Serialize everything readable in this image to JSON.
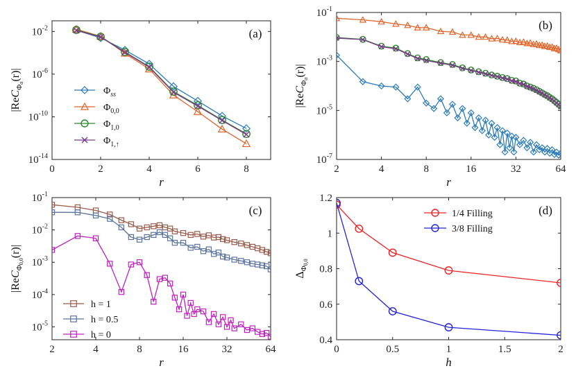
{
  "chart_data": [
    {
      "panel": "(a)",
      "type": "line",
      "xscale": "linear",
      "yscale": "log",
      "xlim": [
        0,
        9
      ],
      "ylim": [
        1e-14,
        0.1
      ],
      "xticks": [
        "0",
        "2",
        "4",
        "6",
        "8"
      ],
      "yticks": [
        {
          "base": "10",
          "exp": "-2"
        },
        {
          "base": "10",
          "exp": "-6"
        },
        {
          "base": "10",
          "exp": "-10"
        },
        {
          "base": "10",
          "exp": "-14"
        }
      ],
      "xlabel": "r",
      "ylabel_parts": {
        "pre": "|Re",
        "c": "C",
        "sub": "Φ",
        "subsub": "α",
        "post": "(r)|"
      },
      "legend_position": "left-center",
      "series": [
        {
          "name": "Φ",
          "name_sub": "ss",
          "color": "#2b7bba",
          "marker": "diamond",
          "x": [
            1,
            2,
            3,
            4,
            5,
            6,
            7,
            8
          ],
          "y": [
            0.013,
            0.0025,
            0.00018,
            9e-06,
            7e-08,
            3e-09,
            1.2e-10,
            8e-12
          ]
        },
        {
          "name": "Φ",
          "name_sub": "0,0",
          "color": "#e0642a",
          "marker": "triangle",
          "x": [
            1,
            2,
            3,
            4,
            5,
            6,
            7,
            8
          ],
          "y": [
            0.016,
            0.0035,
            9e-05,
            3e-06,
            1.1e-08,
            3e-10,
            7e-12,
            3e-13
          ]
        },
        {
          "name": "Φ",
          "name_sub": "1,0",
          "color": "#2a8a2a",
          "marker": "circle",
          "x": [
            1,
            2,
            3,
            4,
            5,
            6,
            7,
            8
          ],
          "y": [
            0.014,
            0.0032,
            0.00012,
            5e-06,
            2.3e-08,
            1.2e-09,
            5e-11,
            2.5e-12
          ]
        },
        {
          "name": "Φ",
          "name_sub": "1,↑",
          "color": "#7a3a8a",
          "marker": "x",
          "x": [
            1,
            2,
            3,
            4,
            5,
            6,
            7,
            8
          ],
          "y": [
            0.0125,
            0.003,
            0.00011,
            4.5e-06,
            2e-08,
            1e-09,
            4.5e-11,
            2.2e-12
          ]
        }
      ]
    },
    {
      "panel": "(b)",
      "type": "line",
      "xscale": "log2",
      "yscale": "log",
      "xlim": [
        2,
        64
      ],
      "ylim": [
        1e-07,
        0.1
      ],
      "xticks": [
        "2",
        "4",
        "8",
        "16",
        "32",
        "64"
      ],
      "yticks": [
        {
          "base": "10",
          "exp": "-1"
        },
        {
          "base": "10",
          "exp": "-3"
        },
        {
          "base": "10",
          "exp": "-5"
        },
        {
          "base": "10",
          "exp": "-7"
        }
      ],
      "xlabel": "r",
      "ylabel_parts": {
        "pre": "|Re",
        "c": "C",
        "sub": "Φ",
        "subsub": "α",
        "post": "(r)|"
      },
      "series": [
        {
          "name": "Φ0,0",
          "color": "#e0642a",
          "marker": "triangle",
          "x": [
            2,
            3,
            4,
            5,
            6,
            7,
            8,
            10,
            12,
            14,
            16,
            18,
            20,
            22,
            24,
            26,
            28,
            30,
            32,
            34,
            36,
            38,
            40,
            42,
            44,
            46,
            48,
            50,
            52,
            54,
            56,
            58,
            60,
            62,
            64
          ],
          "y": [
            0.058,
            0.05,
            0.042,
            0.034,
            0.03,
            0.024,
            0.024,
            0.017,
            0.016,
            0.012,
            0.012,
            0.01,
            0.01,
            0.0085,
            0.0087,
            0.0077,
            0.0075,
            0.0066,
            0.0068,
            0.006,
            0.0062,
            0.0055,
            0.0057,
            0.005,
            0.0052,
            0.0046,
            0.0047,
            0.0042,
            0.0043,
            0.0038,
            0.0039,
            0.0034,
            0.0035,
            0.0031,
            0.0028
          ]
        },
        {
          "name": "Φ1,0",
          "color": "#2a8a2a",
          "marker": "circle",
          "x": [
            2,
            3,
            4,
            5,
            6,
            7,
            8,
            10,
            12,
            14,
            16,
            18,
            20,
            22,
            24,
            26,
            28,
            30,
            32,
            34,
            36,
            38,
            40,
            42,
            44,
            46,
            48,
            50,
            52,
            54,
            56,
            58,
            60,
            62,
            64
          ],
          "y": [
            0.0095,
            0.008,
            0.0042,
            0.0035,
            0.0021,
            0.0014,
            0.0012,
            0.0009,
            0.00075,
            0.00055,
            0.00045,
            0.00038,
            0.00033,
            0.00028,
            0.00025,
            0.00022,
            0.0002,
            0.00017,
            0.00016,
            0.00013,
            0.00012,
            0.0001,
            9e-05,
            8e-05,
            7e-05,
            6e-05,
            5.2e-05,
            4.5e-05,
            4e-05,
            3.4e-05,
            3e-05,
            2.5e-05,
            2.1e-05,
            1.8e-05,
            1.5e-05
          ]
        },
        {
          "name": "Φ1,↑",
          "color": "#7a3a8a",
          "marker": "x",
          "x": [
            2,
            3,
            4,
            5,
            6,
            7,
            8,
            10,
            12,
            14,
            16,
            18,
            20,
            22,
            24,
            26,
            28,
            30,
            32,
            34,
            36,
            38,
            40,
            42,
            44,
            46,
            48,
            50,
            52,
            54,
            56,
            58,
            60,
            62,
            64
          ],
          "y": [
            0.009,
            0.0078,
            0.004,
            0.0033,
            0.002,
            0.0013,
            0.0011,
            0.00085,
            0.0007,
            0.00052,
            0.00043,
            0.00036,
            0.00031,
            0.00027,
            0.00024,
            0.00021,
            0.00019,
            0.00016,
            0.00015,
            0.000125,
            0.000115,
            9.5e-05,
            8.6e-05,
            7.6e-05,
            6.6e-05,
            5.7e-05,
            5e-05,
            4.3e-05,
            3.8e-05,
            3.2e-05,
            2.8e-05,
            2.4e-05,
            2e-05,
            1.7e-05,
            1.4e-05
          ]
        },
        {
          "name": "Φss",
          "color": "#2b7bba",
          "marker": "diamond",
          "x": [
            2,
            3,
            4,
            5,
            6,
            7,
            8,
            9,
            10,
            11,
            12,
            13,
            14,
            15,
            16,
            17,
            18,
            19,
            20,
            21,
            22,
            23,
            24,
            25,
            26,
            27,
            28,
            29,
            30,
            31,
            32,
            34,
            36,
            38,
            40,
            42,
            44,
            46,
            48,
            50,
            52,
            54,
            56,
            58,
            60,
            62,
            64
          ],
          "y": [
            0.0018,
            0.00015,
            0.0001,
            9e-05,
            3e-05,
            9e-05,
            2e-05,
            1.2e-05,
            3e-05,
            8e-06,
            1.8e-05,
            5e-06,
            1.2e-05,
            3e-06,
            8e-06,
            2e-06,
            5e-06,
            1.5e-06,
            4e-06,
            1e-06,
            3e-06,
            8e-07,
            2e-06,
            4e-07,
            1.5e-06,
            2e-07,
            1.2e-06,
            3e-07,
            9e-07,
            2e-07,
            8e-07,
            4e-07,
            6e-07,
            3e-07,
            5e-07,
            2e-07,
            4e-07,
            2.5e-07,
            3e-07,
            2e-07,
            2.8e-07,
            1.8e-07,
            2.5e-07,
            1.6e-07,
            2e-07,
            1.5e-07,
            1.8e-07
          ]
        }
      ]
    },
    {
      "panel": "(c)",
      "type": "line",
      "xscale": "log2",
      "yscale": "log",
      "xlim": [
        2,
        64
      ],
      "ylim": [
        4e-06,
        0.1
      ],
      "xticks": [
        "2",
        "4",
        "8",
        "16",
        "32",
        "64"
      ],
      "yticks": [
        {
          "base": "10",
          "exp": "-1"
        },
        {
          "base": "10",
          "exp": "-2"
        },
        {
          "base": "10",
          "exp": "-3"
        },
        {
          "base": "10",
          "exp": "-4"
        },
        {
          "base": "10",
          "exp": "-5"
        }
      ],
      "xlabel": "r",
      "ylabel_parts": {
        "pre": "|Re",
        "c": "C",
        "sub": "Φ",
        "subsub": "0,0",
        "post": "(r)|"
      },
      "legend_position": "bottom-left",
      "series": [
        {
          "name": "h = 1",
          "color": "#9a5a4a",
          "marker": "square",
          "x": [
            2,
            3,
            4,
            5,
            6,
            7,
            8,
            9,
            10,
            11,
            12,
            13,
            14,
            16,
            18,
            20,
            22,
            24,
            26,
            28,
            30,
            32,
            36,
            40,
            44,
            48,
            52,
            56,
            60,
            64
          ],
          "y": [
            0.06,
            0.05,
            0.04,
            0.03,
            0.02,
            0.015,
            0.011,
            0.012,
            0.013,
            0.014,
            0.012,
            0.011,
            0.009,
            0.008,
            0.007,
            0.0075,
            0.0062,
            0.0068,
            0.0058,
            0.006,
            0.0052,
            0.0048,
            0.0042,
            0.0038,
            0.0034,
            0.003,
            0.0027,
            0.0024,
            0.0021,
            0.0019
          ]
        },
        {
          "name": "h = 0.5",
          "color": "#5a73a0",
          "marker": "square",
          "x": [
            2,
            3,
            4,
            5,
            6,
            7,
            8,
            9,
            10,
            11,
            12,
            13,
            14,
            16,
            18,
            20,
            22,
            24,
            26,
            28,
            30,
            32,
            36,
            40,
            44,
            48,
            52,
            56,
            60,
            64
          ],
          "y": [
            0.035,
            0.035,
            0.028,
            0.022,
            0.012,
            0.006,
            0.005,
            0.006,
            0.007,
            0.0085,
            0.007,
            0.0055,
            0.004,
            0.004,
            0.0028,
            0.003,
            0.0022,
            0.0025,
            0.0018,
            0.002,
            0.0015,
            0.0014,
            0.0012,
            0.0011,
            0.001,
            0.0009,
            0.00085,
            0.0008,
            0.00075,
            0.0006
          ]
        },
        {
          "name": "h = 0",
          "color": "#c020c0",
          "marker": "square",
          "x": [
            2,
            3,
            4,
            5,
            6,
            7,
            8,
            9,
            10,
            11,
            12,
            13,
            14,
            15,
            16,
            17,
            18,
            19,
            20,
            22,
            24,
            26,
            28,
            30,
            32,
            34,
            36,
            40,
            44,
            48,
            52,
            56,
            60,
            64
          ],
          "y": [
            0.0024,
            0.0065,
            0.0055,
            0.0009,
            0.00012,
            0.00085,
            0.001,
            0.0004,
            6e-05,
            0.0003,
            0.00033,
            0.00022,
            8e-05,
            3.5e-05,
            0.0001,
            2.2e-05,
            5.5e-05,
            2.5e-05,
            3.5e-05,
            3e-05,
            1.4e-05,
            2.5e-05,
            1.2e-05,
            2e-05,
            1e-05,
            1.6e-05,
            9e-06,
            1.2e-05,
            8e-06,
            9e-06,
            7e-06,
            6e-06,
            6.5e-06,
            5e-06
          ]
        }
      ]
    },
    {
      "panel": "(d)",
      "type": "line",
      "xscale": "linear",
      "yscale": "linear",
      "xlim": [
        0,
        2
      ],
      "ylim": [
        0.4,
        1.2
      ],
      "xticks": [
        "0",
        "0.5",
        "1",
        "1.5",
        "2"
      ],
      "yticks_text": [
        "1.2",
        "1",
        "0.8",
        "0.6",
        "0.4"
      ],
      "xlabel": "h",
      "ylabel_parts": {
        "pre": "Δ",
        "sub": "Φ",
        "subsub": "0,0"
      },
      "legend_position": "top-right",
      "series": [
        {
          "name": "1/4 Filling",
          "color": "#ee2222",
          "marker": "circle",
          "x": [
            0,
            0.2,
            0.5,
            1,
            2
          ],
          "y": [
            1.16,
            1.025,
            0.89,
            0.79,
            0.72
          ]
        },
        {
          "name": "3/8 Filling",
          "color": "#2222dd",
          "marker": "circle",
          "x": [
            0,
            0.2,
            0.5,
            1,
            2
          ],
          "y": [
            1.17,
            0.73,
            0.56,
            0.47,
            0.425
          ]
        }
      ]
    }
  ]
}
